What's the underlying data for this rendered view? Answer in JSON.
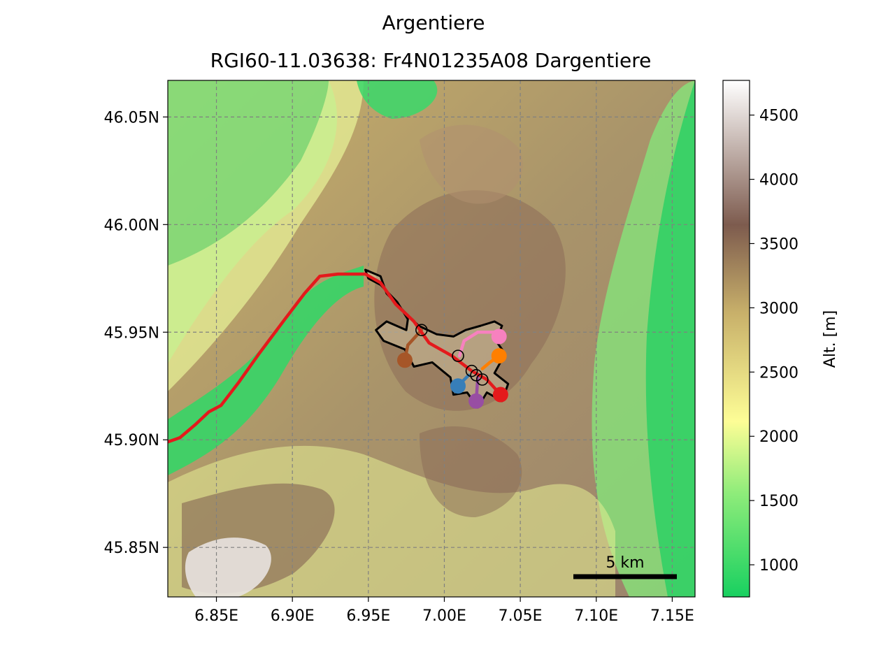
{
  "title": "Argentiere",
  "subtitle": "RGI60-11.03638: Fr4N01235A08 Dargentiere",
  "colorbar": {
    "label": "Alt. [m]",
    "ticks": [
      1000,
      1500,
      2000,
      2500,
      3000,
      3500,
      4000,
      4500
    ],
    "range": [
      750,
      4770
    ],
    "colors": [
      "#18d060",
      "#8eec7a",
      "#fdfd96",
      "#c8b06a",
      "#7d5b4e",
      "#ffffff"
    ]
  },
  "map": {
    "lon_ticks": [
      "6.85E",
      "6.90E",
      "6.95E",
      "7.00E",
      "7.05E",
      "7.10E",
      "7.15E"
    ],
    "lat_ticks": [
      "46.05N",
      "46.00N",
      "45.95N",
      "45.90N",
      "45.85N"
    ],
    "lon_values": [
      6.85,
      6.9,
      6.95,
      7.0,
      7.05,
      7.1,
      7.15
    ],
    "lat_values": [
      46.05,
      46.0,
      45.95,
      45.9,
      45.85
    ],
    "extent": {
      "lon": [
        6.818,
        7.165
      ],
      "lat": [
        45.827,
        46.067
      ]
    },
    "grid": true,
    "scale_bar": {
      "label": "5 km"
    }
  },
  "flowlines": [
    {
      "color": "#e41a1c",
      "points": [
        [
          6.818,
          45.899
        ],
        [
          6.826,
          45.901
        ],
        [
          6.836,
          45.907
        ],
        [
          6.845,
          45.913
        ],
        [
          6.853,
          45.916
        ],
        [
          6.865,
          45.927
        ],
        [
          6.878,
          45.94
        ],
        [
          6.895,
          45.956
        ],
        [
          6.908,
          45.968
        ],
        [
          6.918,
          45.976
        ],
        [
          6.93,
          45.977
        ],
        [
          6.948,
          45.977
        ],
        [
          6.958,
          45.973
        ],
        [
          6.968,
          45.963
        ],
        [
          6.98,
          45.955
        ],
        [
          6.99,
          45.945
        ],
        [
          7.005,
          45.939
        ],
        [
          7.018,
          45.932
        ],
        [
          7.028,
          45.928
        ],
        [
          7.037,
          45.921
        ]
      ]
    },
    {
      "color": "#f781bf",
      "points": [
        [
          7.01,
          45.939
        ],
        [
          7.013,
          45.946
        ],
        [
          7.022,
          45.95
        ],
        [
          7.033,
          45.95
        ],
        [
          7.036,
          45.948
        ]
      ]
    },
    {
      "color": "#ff7f00",
      "points": [
        [
          7.025,
          45.933
        ],
        [
          7.03,
          45.936
        ],
        [
          7.036,
          45.939
        ]
      ]
    },
    {
      "color": "#a65628",
      "points": [
        [
          6.985,
          45.951
        ],
        [
          6.976,
          45.944
        ],
        [
          6.974,
          45.937
        ]
      ]
    },
    {
      "color": "#377eb8",
      "points": [
        [
          7.016,
          45.93
        ],
        [
          7.009,
          45.925
        ]
      ]
    },
    {
      "color": "#984ea3",
      "points": [
        [
          7.022,
          45.929
        ],
        [
          7.021,
          45.918
        ]
      ]
    }
  ],
  "junctions": [
    [
      6.985,
      45.951
    ],
    [
      7.009,
      45.939
    ],
    [
      7.018,
      45.932
    ],
    [
      7.021,
      45.93
    ],
    [
      7.025,
      45.928
    ]
  ],
  "outline": [
    [
      6.948,
      45.979
    ],
    [
      6.958,
      45.976
    ],
    [
      6.962,
      45.968
    ],
    [
      6.973,
      45.96
    ],
    [
      6.983,
      45.953
    ],
    [
      6.995,
      45.949
    ],
    [
      7.006,
      45.948
    ],
    [
      7.014,
      45.951
    ],
    [
      7.024,
      45.953
    ],
    [
      7.033,
      45.955
    ],
    [
      7.038,
      45.953
    ],
    [
      7.034,
      45.946
    ],
    [
      7.04,
      45.94
    ],
    [
      7.033,
      45.931
    ],
    [
      7.042,
      45.926
    ],
    [
      7.038,
      45.918
    ],
    [
      7.028,
      45.922
    ],
    [
      7.022,
      45.915
    ],
    [
      7.015,
      45.922
    ],
    [
      7.006,
      45.921
    ],
    [
      7.004,
      45.929
    ],
    [
      6.992,
      45.936
    ],
    [
      6.98,
      45.934
    ],
    [
      6.974,
      45.942
    ],
    [
      6.96,
      45.946
    ],
    [
      6.955,
      45.951
    ],
    [
      6.962,
      45.955
    ],
    [
      6.975,
      45.951
    ],
    [
      6.976,
      45.956
    ],
    [
      6.969,
      45.964
    ],
    [
      6.958,
      45.972
    ],
    [
      6.95,
      45.975
    ]
  ]
}
